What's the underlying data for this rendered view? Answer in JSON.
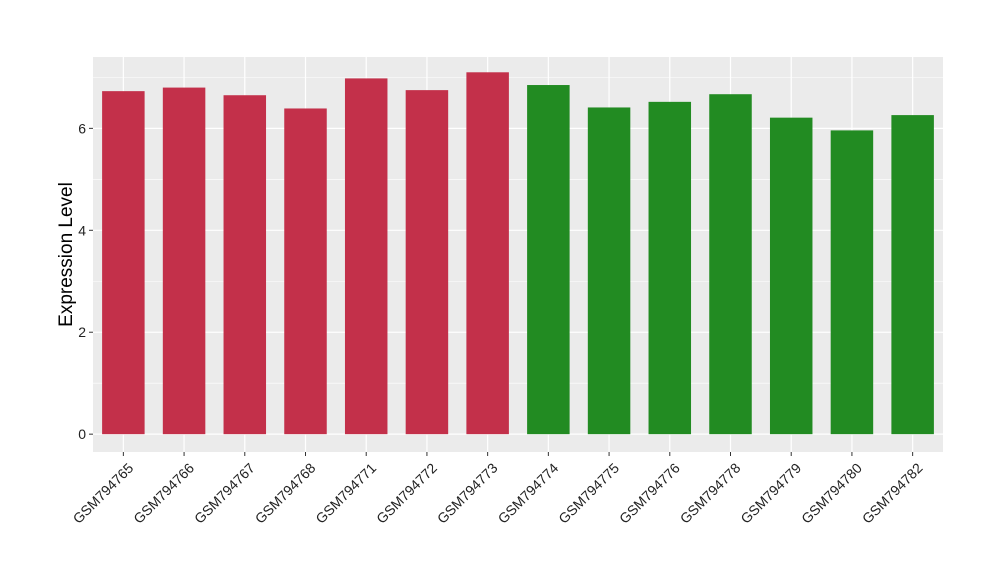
{
  "chart_data": {
    "type": "bar",
    "title": "",
    "xlabel": "",
    "ylabel": "Expression Level",
    "ylim": [
      -0.35,
      7.4
    ],
    "yticks": [
      0,
      2,
      4,
      6
    ],
    "grid": true,
    "legend": "none",
    "colors": {
      "panel_bg": "#ebebeb",
      "grid": "#ffffff",
      "series_a": "#c3304a",
      "series_b": "#228b22"
    },
    "categories": [
      "GSM794765",
      "GSM794766",
      "GSM794767",
      "GSM794768",
      "GSM794771",
      "GSM794772",
      "GSM794773",
      "GSM794774",
      "GSM794775",
      "GSM794776",
      "GSM794778",
      "GSM794779",
      "GSM794780",
      "GSM794782"
    ],
    "values": [
      6.73,
      6.8,
      6.65,
      6.39,
      6.98,
      6.75,
      7.1,
      6.85,
      6.41,
      6.52,
      6.67,
      6.21,
      5.96,
      6.26
    ],
    "bar_colors": [
      "#c3304a",
      "#c3304a",
      "#c3304a",
      "#c3304a",
      "#c3304a",
      "#c3304a",
      "#c3304a",
      "#228b22",
      "#228b22",
      "#228b22",
      "#228b22",
      "#228b22",
      "#228b22",
      "#228b22"
    ]
  }
}
